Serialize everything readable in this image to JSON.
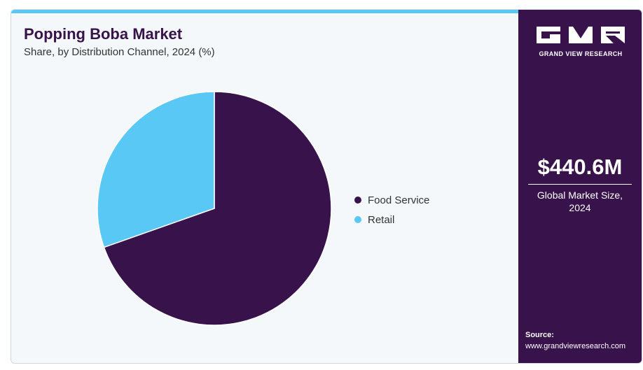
{
  "header": {
    "title": "Popping Boba Market",
    "subtitle": "Share, by Distribution Channel, 2024 (%)"
  },
  "colors": {
    "accent_bar": "#5ac8f5",
    "panel": "#38124a",
    "food_service": "#38124a",
    "retail": "#5ac8f5"
  },
  "chart_data": {
    "type": "pie",
    "title": "Popping Boba Market",
    "subtitle": "Share, by Distribution Channel, 2024 (%)",
    "categories": [
      "Food Service",
      "Retail"
    ],
    "values": [
      69.6,
      30.4
    ],
    "colors": [
      "#38124a",
      "#5ac8f5"
    ],
    "legend_position": "right"
  },
  "side_panel": {
    "logo_name": "gvr-logo-icon",
    "logo_text": "GRAND VIEW RESEARCH",
    "market_value": "$440.6M",
    "market_label_line1": "Global Market Size,",
    "market_label_line2": "2024",
    "source_label": "Source:",
    "source_url": "www.grandviewresearch.com"
  }
}
